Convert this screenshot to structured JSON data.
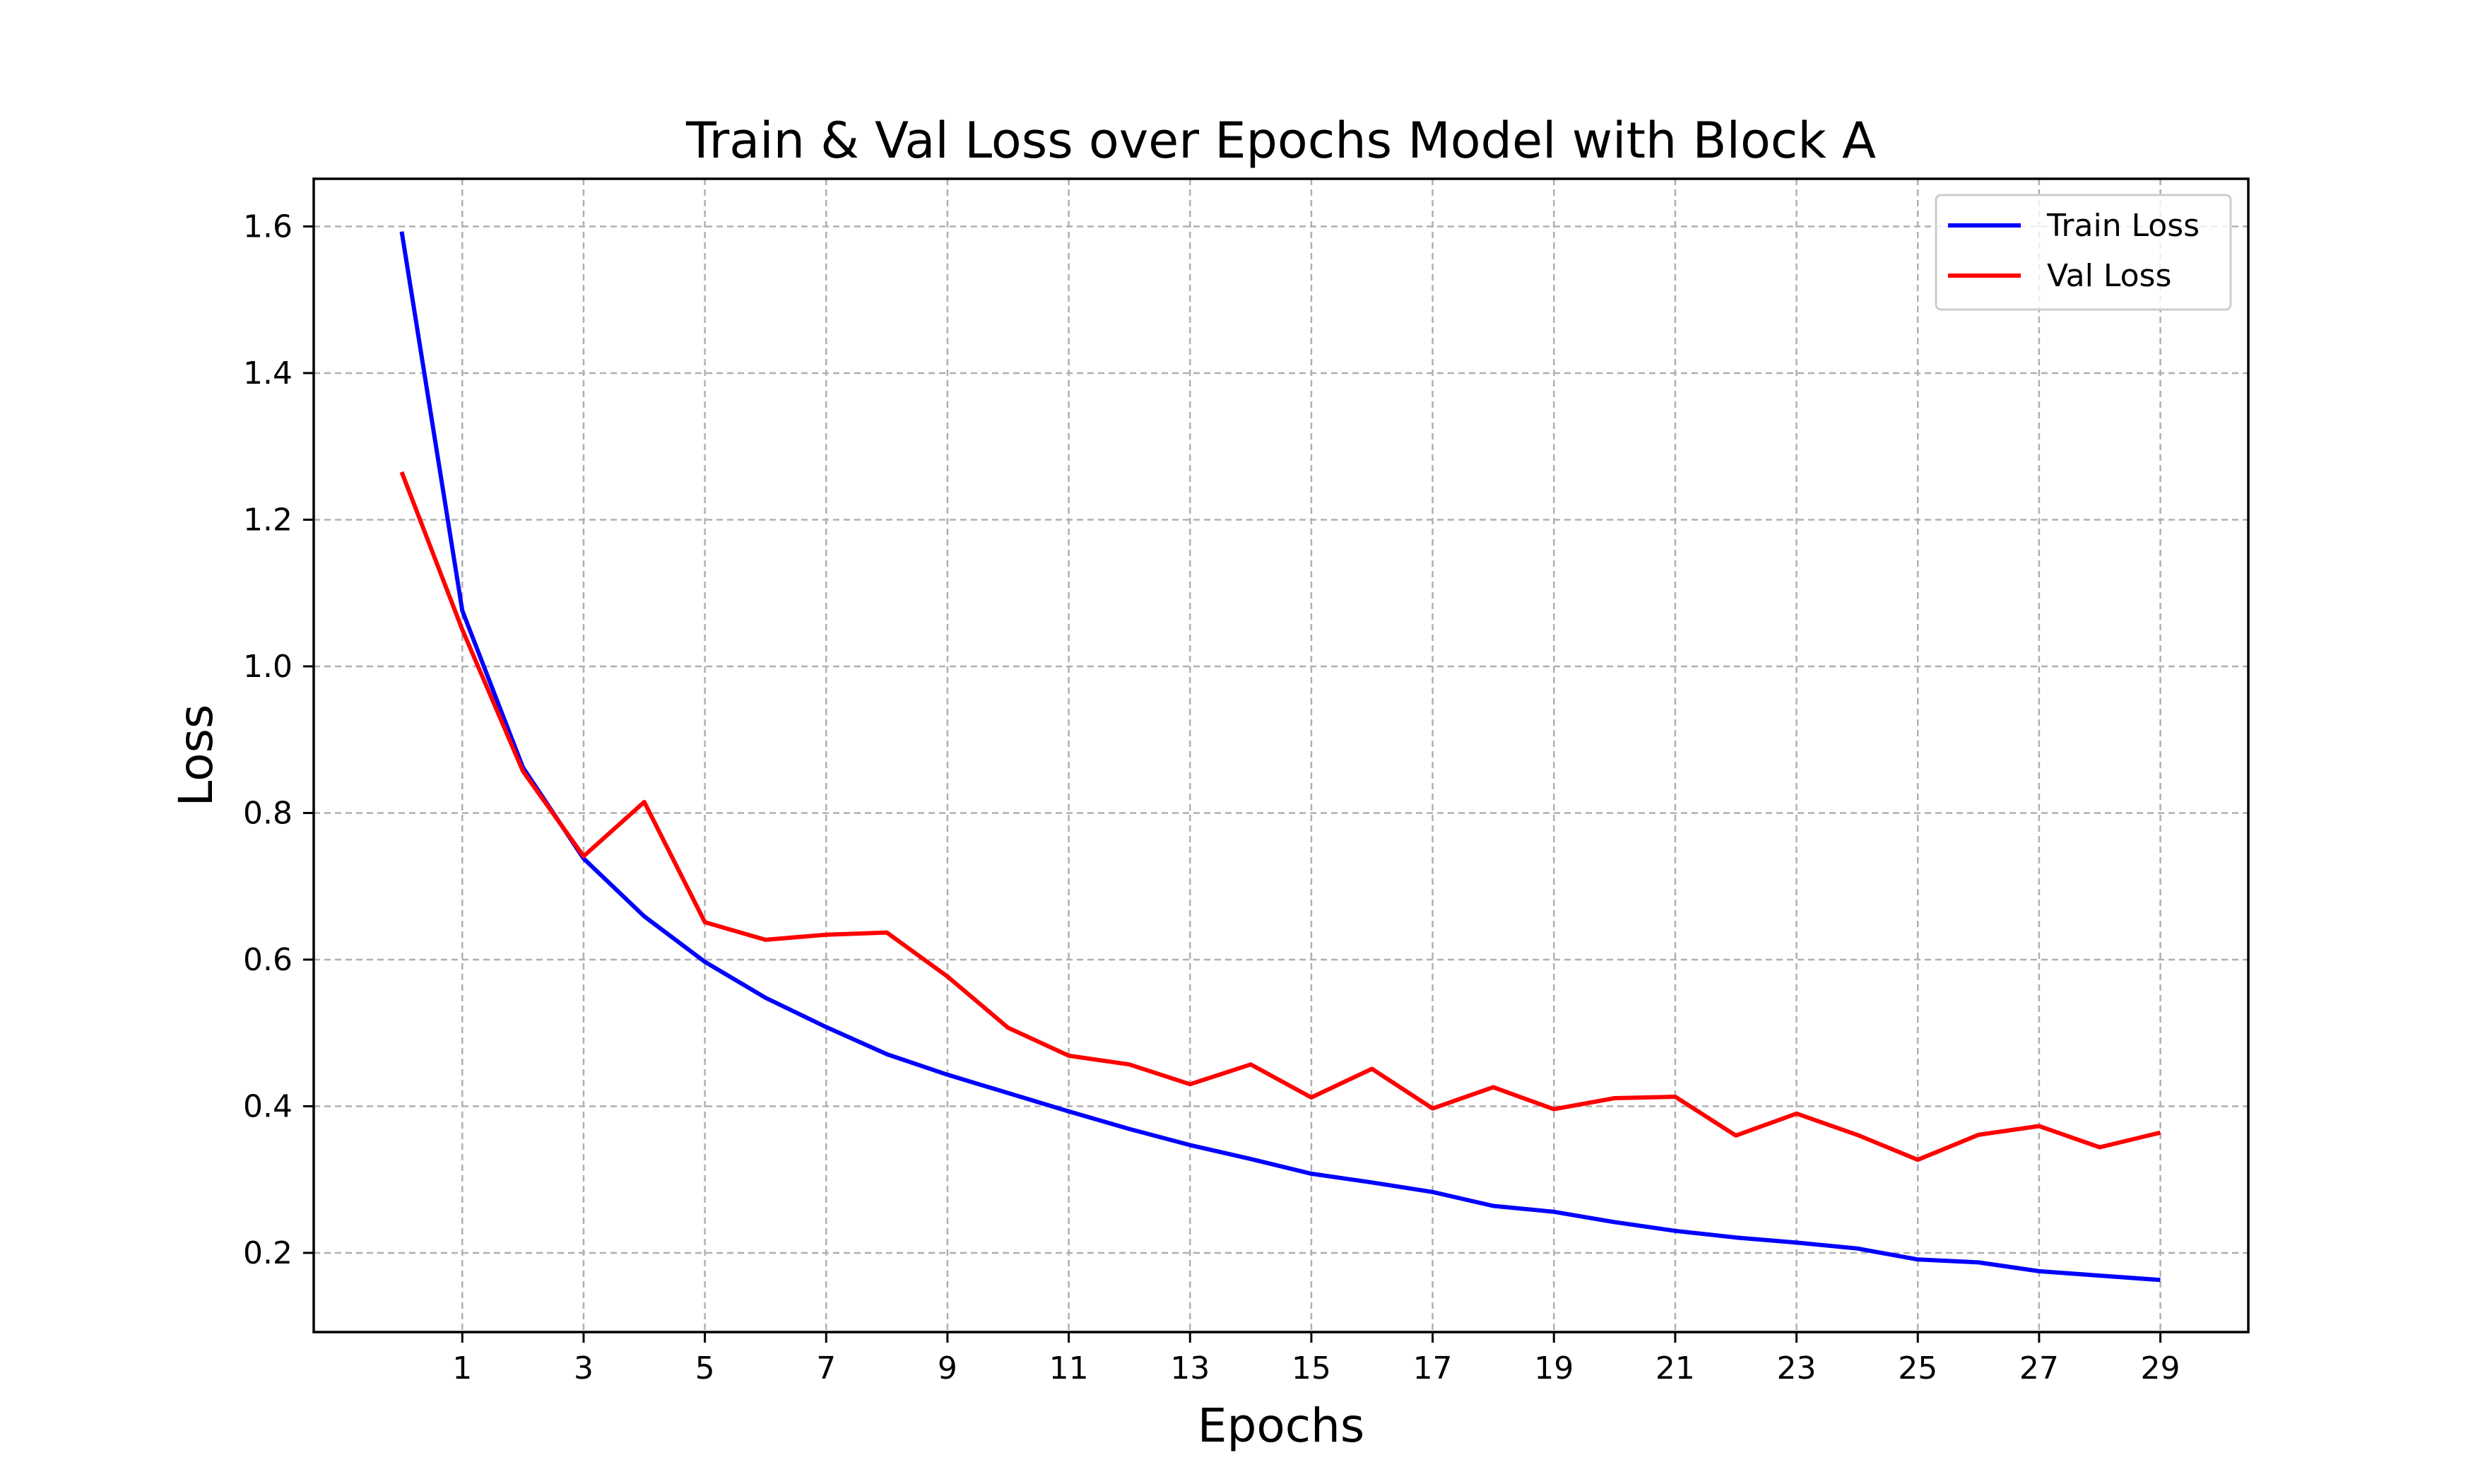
{
  "chart_data": {
    "type": "line",
    "title": "Train & Val Loss over Epochs Model with Block A",
    "xlabel": "Epochs",
    "ylabel": "Loss",
    "xlim": [
      -1.45,
      30.45
    ],
    "ylim": [
      0.092,
      1.665
    ],
    "xticks": [
      "1",
      "3",
      "5",
      "7",
      "9",
      "11",
      "13",
      "15",
      "17",
      "19",
      "21",
      "23",
      "25",
      "27",
      "29"
    ],
    "yticks": [
      "0.2",
      "0.4",
      "0.6",
      "0.8",
      "1.0",
      "1.2",
      "1.4",
      "1.6"
    ],
    "grid": true,
    "legend_position": "top-right",
    "x": [
      0,
      1,
      2,
      3,
      4,
      5,
      6,
      7,
      8,
      9,
      10,
      11,
      12,
      13,
      14,
      15,
      16,
      17,
      18,
      19,
      20,
      21,
      22,
      23,
      24,
      25,
      26,
      27,
      28,
      29
    ],
    "series": [
      {
        "name": "Train Loss",
        "color": "#0000ff",
        "values": [
          1.593,
          1.076,
          0.862,
          0.738,
          0.659,
          0.597,
          0.548,
          0.508,
          0.471,
          0.443,
          0.418,
          0.393,
          0.369,
          0.347,
          0.328,
          0.308,
          0.296,
          0.283,
          0.264,
          0.256,
          0.242,
          0.23,
          0.221,
          0.214,
          0.206,
          0.191,
          0.187,
          0.175,
          0.169,
          0.163
        ]
      },
      {
        "name": "Val Loss",
        "color": "#ff0000",
        "values": [
          1.265,
          1.05,
          0.857,
          0.741,
          0.815,
          0.651,
          0.627,
          0.634,
          0.637,
          0.577,
          0.507,
          0.469,
          0.457,
          0.43,
          0.457,
          0.412,
          0.451,
          0.397,
          0.426,
          0.396,
          0.411,
          0.413,
          0.36,
          0.39,
          0.361,
          0.327,
          0.361,
          0.373,
          0.344,
          0.364
        ]
      }
    ]
  }
}
